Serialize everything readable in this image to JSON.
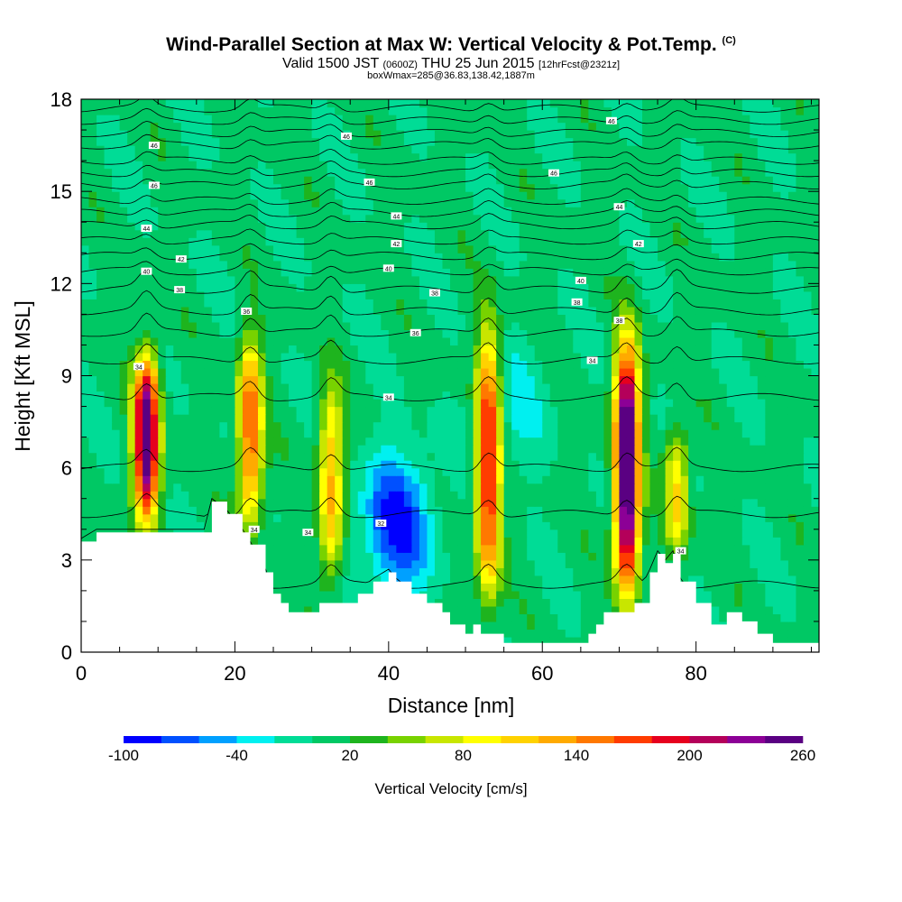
{
  "header": {
    "title": "Wind-Parallel Section at Max W: Vertical Velocity & Pot.Temp.",
    "copyright": "(C)",
    "valid_a": "Valid 1500 JST",
    "valid_utc": "(0600Z)",
    "valid_b": "THU 25 Jun 2015",
    "fcst": "[12hrFcst@2321z]",
    "box": "boxWmax=285@36.83,138.42,1887m"
  },
  "chart_data": {
    "type": "heatmap",
    "xlabel": "Distance [nm]",
    "ylabel": "Height [Kft MSL]",
    "xlim": [
      0,
      96
    ],
    "ylim": [
      0,
      18
    ],
    "x_ticks": [
      "0",
      "20",
      "40",
      "60",
      "80"
    ],
    "y_ticks": [
      "0",
      "3",
      "6",
      "9",
      "12",
      "15",
      "18"
    ],
    "colorbar": {
      "label": "Vertical Velocity [cm/s]",
      "tick_labels": [
        "-100",
        "-40",
        "20",
        "80",
        "140",
        "200",
        "260"
      ],
      "levels": [
        -100,
        -80,
        -60,
        -40,
        -20,
        0,
        20,
        40,
        60,
        80,
        100,
        120,
        140,
        160,
        180,
        200,
        220,
        240,
        260
      ],
      "colors": [
        "#0000ff",
        "#0050ff",
        "#00a0ff",
        "#00f0f0",
        "#00dc96",
        "#00c864",
        "#1eb41e",
        "#78d200",
        "#c8e600",
        "#ffff00",
        "#ffd200",
        "#ffaa00",
        "#ff7800",
        "#ff3c00",
        "#e6001e",
        "#b4005a",
        "#8c0096",
        "#5a0082"
      ]
    },
    "background_w": 5,
    "updraft_cores": [
      {
        "x": 8.5,
        "base": 4.0,
        "top": 10.0,
        "w": 260
      },
      {
        "x": 22.0,
        "base": 3.8,
        "top": 10.5,
        "w": 160
      },
      {
        "x": 32.5,
        "base": 2.0,
        "top": 9.0,
        "w": 120
      },
      {
        "x": 53.0,
        "base": 1.5,
        "top": 11.0,
        "w": 190
      },
      {
        "x": 71.0,
        "base": 1.5,
        "top": 10.5,
        "w": 285
      },
      {
        "x": 77.5,
        "base": 3.0,
        "top": 7.5,
        "w": 100
      }
    ],
    "downdraft_cores": [
      {
        "x": 41.0,
        "y": 4.2,
        "w": -95
      },
      {
        "x": 56.0,
        "y": 8.0,
        "w": -30
      }
    ],
    "terrain": {
      "x": [
        0,
        2,
        16,
        17,
        19,
        21,
        22,
        24,
        25,
        26,
        27,
        31,
        36,
        38,
        40,
        41,
        43,
        45,
        47,
        48,
        50,
        51,
        52,
        55,
        58,
        63,
        66,
        67,
        68,
        71,
        72,
        74,
        75,
        76,
        77,
        78,
        80,
        82,
        84,
        86,
        88,
        90,
        92,
        96
      ],
      "h": [
        3.6,
        3.9,
        3.9,
        4.9,
        4.5,
        3.9,
        3.5,
        2.6,
        1.9,
        1.6,
        1.3,
        1.6,
        1.9,
        2.3,
        2.6,
        2.3,
        1.9,
        1.6,
        1.3,
        0.9,
        0.6,
        0.9,
        0.6,
        0.3,
        0.3,
        0.3,
        0.6,
        0.9,
        1.3,
        1.3,
        1.6,
        2.6,
        3.2,
        2.9,
        3.2,
        2.3,
        1.6,
        0.9,
        1.3,
        1.0,
        0.6,
        0.3,
        0.3,
        0.3
      ]
    },
    "theta_labels": [
      {
        "text": "34",
        "x": 7.5,
        "y": 9.3
      },
      {
        "text": "34",
        "x": 40.0,
        "y": 8.3
      },
      {
        "text": "34",
        "x": 22.5,
        "y": 4.0
      },
      {
        "text": "34",
        "x": 29.5,
        "y": 3.9
      },
      {
        "text": "34",
        "x": 78.0,
        "y": 3.3
      },
      {
        "text": "32",
        "x": 39.0,
        "y": 4.2
      },
      {
        "text": "34",
        "x": 66.5,
        "y": 9.5
      },
      {
        "text": "36",
        "x": 43.5,
        "y": 10.4
      },
      {
        "text": "36",
        "x": 21.5,
        "y": 11.1
      },
      {
        "text": "38",
        "x": 12.8,
        "y": 11.8
      },
      {
        "text": "38",
        "x": 46.0,
        "y": 11.7
      },
      {
        "text": "38",
        "x": 64.5,
        "y": 11.4
      },
      {
        "text": "38",
        "x": 70.0,
        "y": 10.8
      },
      {
        "text": "40",
        "x": 8.5,
        "y": 12.4
      },
      {
        "text": "40",
        "x": 40.0,
        "y": 12.5
      },
      {
        "text": "40",
        "x": 65.0,
        "y": 12.1
      },
      {
        "text": "42",
        "x": 13.0,
        "y": 12.8
      },
      {
        "text": "42",
        "x": 41.0,
        "y": 13.3
      },
      {
        "text": "42",
        "x": 72.5,
        "y": 13.3
      },
      {
        "text": "44",
        "x": 8.5,
        "y": 13.8
      },
      {
        "text": "44",
        "x": 41.0,
        "y": 14.2
      },
      {
        "text": "44",
        "x": 70.0,
        "y": 14.5
      },
      {
        "text": "46",
        "x": 9.5,
        "y": 15.2
      },
      {
        "text": "46",
        "x": 37.5,
        "y": 15.3
      },
      {
        "text": "46",
        "x": 61.5,
        "y": 15.6
      },
      {
        "text": "46",
        "x": 9.5,
        "y": 16.5
      },
      {
        "text": "46",
        "x": 34.5,
        "y": 16.8
      },
      {
        "text": "46",
        "x": 69.0,
        "y": 17.3
      }
    ]
  }
}
